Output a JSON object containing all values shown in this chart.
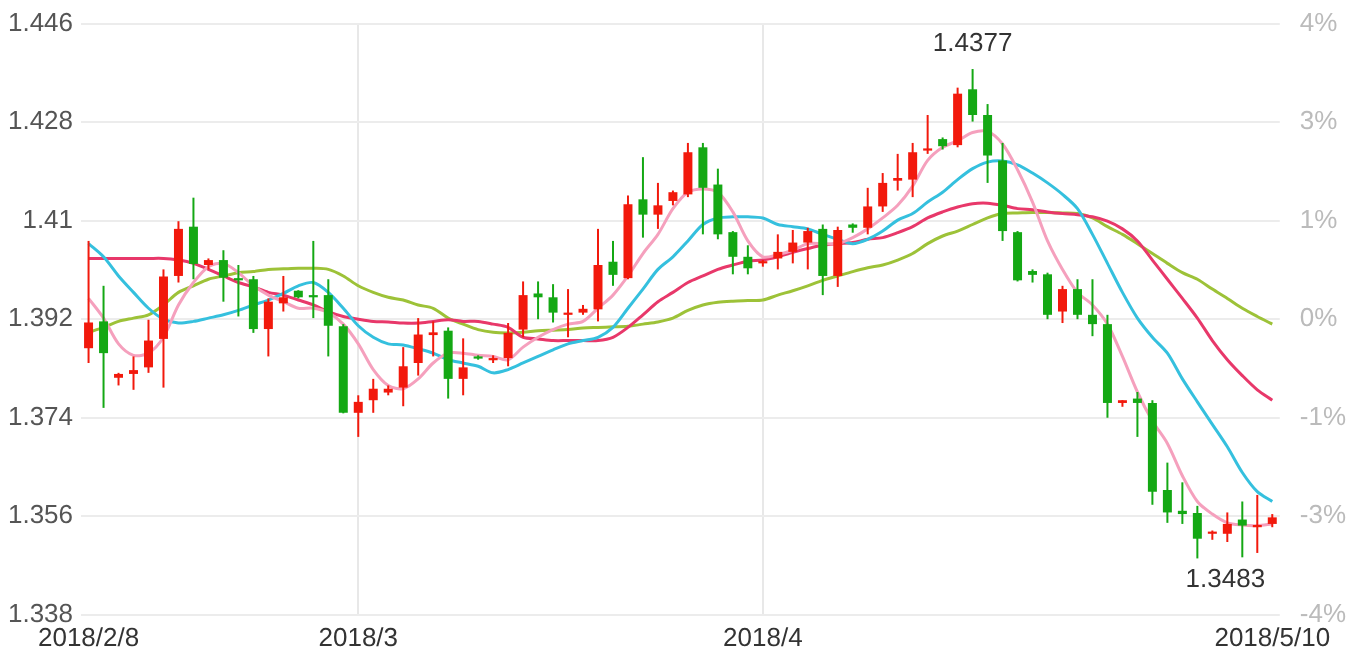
{
  "chart_data": {
    "type": "candlestick",
    "categories": [
      "2018/2/8",
      null,
      null,
      null,
      null,
      null,
      null,
      null,
      null,
      null,
      null,
      null,
      null,
      null,
      null,
      null,
      null,
      null,
      "2018/3",
      null,
      null,
      null,
      null,
      null,
      null,
      null,
      null,
      null,
      null,
      null,
      null,
      null,
      null,
      null,
      null,
      null,
      null,
      null,
      null,
      null,
      null,
      null,
      null,
      null,
      null,
      "2018/4",
      null,
      null,
      null,
      null,
      null,
      null,
      null,
      null,
      null,
      null,
      null,
      null,
      null,
      null,
      null,
      null,
      null,
      null,
      null,
      null,
      null,
      null,
      null,
      null,
      null,
      null,
      null,
      null,
      null,
      null,
      null,
      null,
      null,
      "2018/5/10"
    ],
    "ohlc": [
      [
        1.3867,
        1.4063,
        1.384,
        1.3914
      ],
      [
        1.3916,
        1.3981,
        1.3758,
        1.3858
      ],
      [
        1.3813,
        1.3822,
        1.3799,
        1.382
      ],
      [
        1.382,
        1.3852,
        1.3791,
        1.3827
      ],
      [
        1.3832,
        1.3919,
        1.3822,
        1.3881
      ],
      [
        1.3884,
        1.4011,
        1.3795,
        1.3998
      ],
      [
        1.3999,
        1.4099,
        1.3987,
        1.4085
      ],
      [
        1.4089,
        1.4142,
        1.3993,
        1.4021
      ],
      [
        1.4019,
        1.4031,
        1.4011,
        1.4028
      ],
      [
        1.4028,
        1.4046,
        1.3952,
        1.3996
      ],
      [
        1.3995,
        1.4019,
        1.3925,
        1.3991
      ],
      [
        1.3993,
        1.3999,
        1.3895,
        1.3902
      ],
      [
        1.3902,
        1.3958,
        1.3852,
        1.3952
      ],
      [
        1.3949,
        1.3999,
        1.3934,
        1.396
      ],
      [
        1.3972,
        1.3973,
        1.3958,
        1.396
      ],
      [
        1.3964,
        1.4063,
        1.3922,
        1.396
      ],
      [
        1.3964,
        1.3993,
        1.3852,
        1.3908
      ],
      [
        1.3907,
        1.3911,
        1.3748,
        1.3749
      ],
      [
        1.3749,
        1.3781,
        1.3705,
        1.3769
      ],
      [
        1.3772,
        1.3811,
        1.3749,
        1.3793
      ],
      [
        1.3786,
        1.3799,
        1.3781,
        1.3793
      ],
      [
        1.3795,
        1.3869,
        1.3761,
        1.3834
      ],
      [
        1.384,
        1.3922,
        1.3817,
        1.3892
      ],
      [
        1.3891,
        1.3916,
        1.3852,
        1.3896
      ],
      [
        1.3899,
        1.3905,
        1.3775,
        1.3811
      ],
      [
        1.3811,
        1.3885,
        1.3781,
        1.3832
      ],
      [
        1.3852,
        1.3854,
        1.3846,
        1.3848
      ],
      [
        1.3845,
        1.3854,
        1.384,
        1.3849
      ],
      [
        1.3849,
        1.3913,
        1.3834,
        1.3895
      ],
      [
        1.3901,
        1.3989,
        1.3887,
        1.3964
      ],
      [
        1.3967,
        1.3989,
        1.392,
        1.396
      ],
      [
        1.396,
        1.3984,
        1.3914,
        1.3932
      ],
      [
        1.3928,
        1.3975,
        1.3887,
        1.3932
      ],
      [
        1.3932,
        1.3946,
        1.3928,
        1.3939
      ],
      [
        1.3938,
        1.4085,
        1.3916,
        1.4019
      ],
      [
        1.4025,
        1.4063,
        1.3981,
        1.4001
      ],
      [
        1.3995,
        1.4146,
        1.3993,
        1.413
      ],
      [
        1.4139,
        1.4216,
        1.4069,
        1.4111
      ],
      [
        1.4111,
        1.4169,
        1.4085,
        1.4128
      ],
      [
        1.4136,
        1.4155,
        1.4128,
        1.4152
      ],
      [
        1.4148,
        1.4242,
        1.4143,
        1.4225
      ],
      [
        1.4234,
        1.4242,
        1.4075,
        1.416
      ],
      [
        1.4166,
        1.4195,
        1.4066,
        1.4075
      ],
      [
        1.4079,
        1.4081,
        1.4002,
        1.4034
      ],
      [
        1.4034,
        1.4055,
        1.4002,
        1.4013
      ],
      [
        1.4022,
        1.4028,
        1.4016,
        1.4026
      ],
      [
        1.4031,
        1.4075,
        1.4011,
        1.4043
      ],
      [
        1.4043,
        1.4083,
        1.4022,
        1.406
      ],
      [
        1.406,
        1.4087,
        1.4011,
        1.4081
      ],
      [
        1.4085,
        1.4093,
        1.3964,
        1.3999
      ],
      [
        1.3999,
        1.4089,
        1.3979,
        1.4083
      ],
      [
        1.4093,
        1.4095,
        1.4078,
        1.4087
      ],
      [
        1.4087,
        1.416,
        1.4075,
        1.4126
      ],
      [
        1.4126,
        1.4187,
        1.4116,
        1.4169
      ],
      [
        1.4173,
        1.4222,
        1.4155,
        1.4178
      ],
      [
        1.4175,
        1.4242,
        1.4143,
        1.4225
      ],
      [
        1.4228,
        1.4293,
        1.4222,
        1.4232
      ],
      [
        1.4249,
        1.4252,
        1.423,
        1.4236
      ],
      [
        1.4238,
        1.4343,
        1.4234,
        1.4332
      ],
      [
        1.434,
        1.4377,
        1.4281,
        1.4293
      ],
      [
        1.4293,
        1.4313,
        1.4169,
        1.4219
      ],
      [
        1.421,
        1.4242,
        1.4063,
        1.4081
      ],
      [
        1.4079,
        1.4081,
        1.3989,
        1.3991
      ],
      [
        1.4008,
        1.4011,
        1.3987,
        1.4001
      ],
      [
        1.4002,
        1.4005,
        1.392,
        1.3928
      ],
      [
        1.3934,
        1.3981,
        1.3913,
        1.3975
      ],
      [
        1.3975,
        1.3993,
        1.392,
        1.3928
      ],
      [
        1.3928,
        1.3993,
        1.3889,
        1.3911
      ],
      [
        1.3911,
        1.3928,
        1.374,
        1.3767
      ],
      [
        1.3767,
        1.3772,
        1.376,
        1.3772
      ],
      [
        1.3775,
        1.3787,
        1.3705,
        1.3767
      ],
      [
        1.3767,
        1.3772,
        1.3581,
        1.3605
      ],
      [
        1.3608,
        1.3658,
        1.3548,
        1.3567
      ],
      [
        1.357,
        1.3622,
        1.3546,
        1.3564
      ],
      [
        1.3566,
        1.3579,
        1.3483,
        1.3519
      ],
      [
        1.3528,
        1.3534,
        1.3517,
        1.3532
      ],
      [
        1.3528,
        1.3567,
        1.3513,
        1.3546
      ],
      [
        1.3554,
        1.3587,
        1.3485,
        1.3543
      ],
      [
        1.354,
        1.3599,
        1.3493,
        1.3544
      ],
      [
        1.3546,
        1.3564,
        1.354,
        1.3558
      ]
    ],
    "colors": [
      "#f2190c",
      "#14a814",
      "#f2190c",
      "#f2190c",
      "#f2190c",
      "#f2190c",
      "#f2190c",
      "#14a814",
      "#f2190c",
      "#14a814",
      "#14a814",
      "#14a814",
      "#f2190c",
      "#f2190c",
      "#14a814",
      "#14a814",
      "#14a814",
      "#14a814",
      "#f2190c",
      "#f2190c",
      "#f2190c",
      "#f2190c",
      "#f2190c",
      "#f2190c",
      "#14a814",
      "#f2190c",
      "#14a814",
      "#f2190c",
      "#f2190c",
      "#f2190c",
      "#14a814",
      "#14a814",
      "#f2190c",
      "#f2190c",
      "#f2190c",
      "#14a814",
      "#f2190c",
      "#14a814",
      "#f2190c",
      "#f2190c",
      "#f2190c",
      "#14a814",
      "#14a814",
      "#14a814",
      "#14a814",
      "#f2190c",
      "#f2190c",
      "#f2190c",
      "#f2190c",
      "#14a814",
      "#f2190c",
      "#14a814",
      "#f2190c",
      "#f2190c",
      "#f2190c",
      "#f2190c",
      "#f2190c",
      "#14a814",
      "#f2190c",
      "#14a814",
      "#14a814",
      "#14a814",
      "#14a814",
      "#14a814",
      "#14a814",
      "#f2190c",
      "#14a814",
      "#14a814",
      "#14a814",
      "#f2190c",
      "#14a814",
      "#14a814",
      "#14a814",
      "#14a814",
      "#14a814",
      "#f2190c",
      "#f2190c",
      "#14a814",
      "#f2190c",
      "#f2190c"
    ],
    "series": [
      {
        "type": "line",
        "color": "#f5a0bd",
        "values": [
          1.3958,
          1.3922,
          1.3875,
          1.3854,
          1.3858,
          1.3887,
          1.3946,
          1.3987,
          1.4016,
          1.4022,
          1.4005,
          1.3981,
          1.3964,
          1.3952,
          1.394,
          1.394,
          1.3932,
          1.3911,
          1.3875,
          1.3828,
          1.3799,
          1.3793,
          1.3811,
          1.384,
          1.3858,
          1.3858,
          1.3854,
          1.3852,
          1.3846,
          1.3869,
          1.3887,
          1.3901,
          1.3911,
          1.3916,
          1.394,
          1.3964,
          1.3999,
          1.404,
          1.4075,
          1.4122,
          1.4152,
          1.4158,
          1.4152,
          1.4116,
          1.4063,
          1.4034,
          1.4038,
          1.4046,
          1.4058,
          1.4058,
          1.4058,
          1.4069,
          1.4085,
          1.4105,
          1.4128,
          1.4163,
          1.421,
          1.4234,
          1.4246,
          1.4261,
          1.4263,
          1.424,
          1.4193,
          1.4134,
          1.4063,
          1.4011,
          1.3969,
          1.3946,
          1.3911,
          1.3852,
          1.3787,
          1.3734,
          1.3693,
          1.3634,
          1.3587,
          1.3564,
          1.3548,
          1.3544,
          1.3543,
          1.3546
        ]
      },
      {
        "type": "line",
        "color": "#35c0de",
        "values": [
          1.4058,
          1.4034,
          1.3999,
          1.3969,
          1.394,
          1.392,
          1.3913,
          1.3916,
          1.3922,
          1.3928,
          1.3936,
          1.3946,
          1.3955,
          1.3967,
          1.3981,
          1.3987,
          1.3969,
          1.394,
          1.3908,
          1.3887,
          1.3875,
          1.3873,
          1.3866,
          1.3858,
          1.3846,
          1.384,
          1.3834,
          1.3822,
          1.3828,
          1.384,
          1.3852,
          1.3864,
          1.3875,
          1.3881,
          1.3887,
          1.3905,
          1.394,
          1.3975,
          1.4011,
          1.4034,
          1.4063,
          1.4093,
          1.4105,
          1.4107,
          1.4107,
          1.4105,
          1.4093,
          1.4089,
          1.4085,
          1.4075,
          1.4066,
          1.4058,
          1.4066,
          1.4081,
          1.4101,
          1.4113,
          1.4134,
          1.4152,
          1.4175,
          1.4195,
          1.4207,
          1.4209,
          1.4202,
          1.4187,
          1.4169,
          1.4148,
          1.4122,
          1.4075,
          1.4022,
          1.3969,
          1.3922,
          1.3887,
          1.3858,
          1.3811,
          1.3769,
          1.3728,
          1.3687,
          1.364,
          1.3605,
          1.3587
        ]
      },
      {
        "type": "line",
        "color": "#e8386a",
        "values": [
          1.4031,
          1.4031,
          1.4031,
          1.4031,
          1.4031,
          1.4031,
          1.4028,
          1.4022,
          1.4011,
          1.3999,
          1.3987,
          1.3979,
          1.3969,
          1.3964,
          1.3955,
          1.3946,
          1.3934,
          1.3925,
          1.392,
          1.3916,
          1.3915,
          1.3913,
          1.3913,
          1.3916,
          1.3919,
          1.3916,
          1.3916,
          1.3911,
          1.3905,
          1.3887,
          1.3884,
          1.3881,
          1.3881,
          1.3881,
          1.3881,
          1.3887,
          1.3905,
          1.3928,
          1.3952,
          1.3969,
          1.3987,
          1.3999,
          1.4011,
          1.4019,
          1.4026,
          1.4028,
          1.4034,
          1.4042,
          1.4049,
          1.4055,
          1.4058,
          1.406,
          1.4066,
          1.4069,
          1.4078,
          1.4089,
          1.4105,
          1.4116,
          1.4125,
          1.4131,
          1.4132,
          1.4128,
          1.4122,
          1.412,
          1.4116,
          1.4113,
          1.4111,
          1.4107,
          1.4099,
          1.4085,
          1.4063,
          1.4028,
          1.3993,
          1.3958,
          1.3922,
          1.3881,
          1.3846,
          1.3817,
          1.3791,
          1.3772
        ]
      },
      {
        "type": "line",
        "color": "#9dc238",
        "values": [
          1.3896,
          1.3905,
          1.3916,
          1.3922,
          1.3928,
          1.3946,
          1.3969,
          1.3981,
          1.3993,
          1.3999,
          1.4005,
          1.4007,
          1.4011,
          1.4012,
          1.4013,
          1.4013,
          1.4011,
          1.3999,
          1.3981,
          1.3969,
          1.396,
          1.3955,
          1.3946,
          1.394,
          1.3922,
          1.3911,
          1.3901,
          1.3896,
          1.3895,
          1.3896,
          1.3899,
          1.39,
          1.3901,
          1.3904,
          1.3905,
          1.3906,
          1.3907,
          1.3911,
          1.3915,
          1.3922,
          1.3936,
          1.3946,
          1.3951,
          1.3953,
          1.3954,
          1.3955,
          1.3964,
          1.3972,
          1.3981,
          1.3991,
          1.3999,
          1.4007,
          1.4014,
          1.4019,
          1.4028,
          1.404,
          1.4058,
          1.4072,
          1.4081,
          1.4093,
          1.4105,
          1.4113,
          1.4114,
          1.4115,
          1.4115,
          1.4114,
          1.4113,
          1.4105,
          1.4089,
          1.4075,
          1.4058,
          1.404,
          1.4022,
          1.4005,
          1.3993,
          1.3975,
          1.3958,
          1.394,
          1.3925,
          1.3911
        ]
      }
    ],
    "ylim": [
      1.338,
      1.446
    ],
    "yticks": [
      1.338,
      1.356,
      1.374,
      1.392,
      1.41,
      1.428,
      1.446
    ],
    "y2lim": [
      -3.879,
      3.879
    ],
    "y2ticks": [
      {
        "value": 3.879,
        "label": "4%"
      },
      {
        "value": 2.586,
        "label": "3%"
      },
      {
        "value": 1.293,
        "label": "1%"
      },
      {
        "value": 0,
        "label": "0%"
      },
      {
        "value": -1.293,
        "label": "-1%"
      },
      {
        "value": -2.586,
        "label": "-3%"
      },
      {
        "value": -3.879,
        "label": "-4%"
      }
    ],
    "annotations": [
      {
        "text": "1.4377",
        "y": 1.4377
      },
      "1.3483"
    ],
    "grid": true,
    "legend": false
  }
}
